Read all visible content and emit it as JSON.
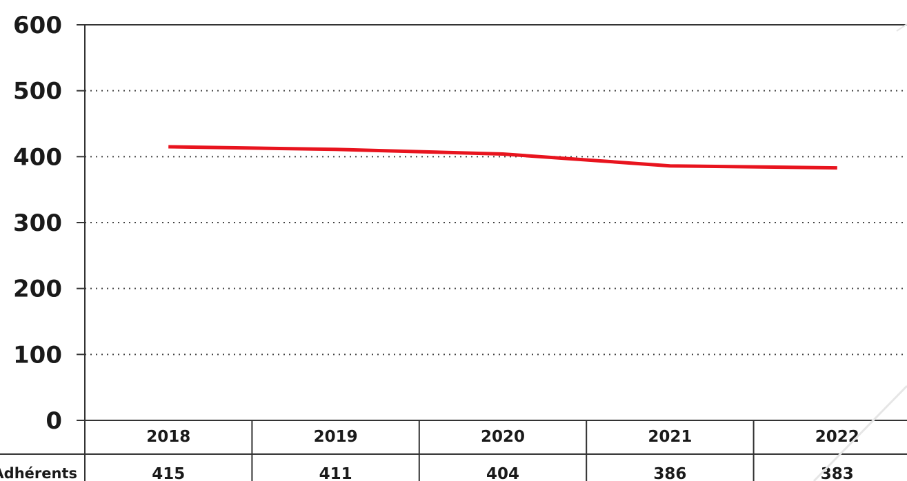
{
  "chart_data": {
    "type": "line",
    "categories": [
      "2018",
      "2019",
      "2020",
      "2021",
      "2022"
    ],
    "series": [
      {
        "name": "Adhérents",
        "values": [
          415,
          411,
          404,
          386,
          383
        ],
        "color": "#e8141e"
      }
    ],
    "ylim": [
      0,
      600
    ],
    "yticks": [
      "0",
      "100",
      "200",
      "300",
      "400",
      "500",
      "600"
    ],
    "grid": "dotted horizontal",
    "table": {
      "row_label": "Adhérents",
      "values": [
        "415",
        "411",
        "404",
        "386",
        "383"
      ]
    }
  }
}
